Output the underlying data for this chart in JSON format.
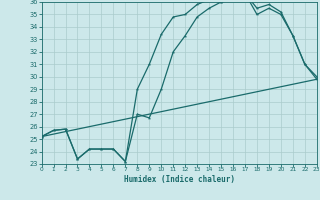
{
  "xlabel": "Humidex (Indice chaleur)",
  "ylabel": "",
  "background_color": "#cce8ea",
  "grid_color": "#aacccc",
  "line_color": "#1a6b6b",
  "xlim": [
    0,
    23
  ],
  "ylim": [
    23,
    36
  ],
  "xticks": [
    0,
    1,
    2,
    3,
    4,
    5,
    6,
    7,
    8,
    9,
    10,
    11,
    12,
    13,
    14,
    15,
    16,
    17,
    18,
    19,
    20,
    21,
    22,
    23
  ],
  "yticks": [
    23,
    24,
    25,
    26,
    27,
    28,
    29,
    30,
    31,
    32,
    33,
    34,
    35,
    36
  ],
  "line1_x": [
    0,
    1,
    2,
    3,
    4,
    5,
    6,
    7,
    8,
    9,
    10,
    11,
    12,
    13,
    14,
    15,
    16,
    17,
    18,
    19,
    20,
    21,
    22,
    23
  ],
  "line1_y": [
    25.2,
    25.7,
    25.8,
    23.4,
    24.2,
    24.2,
    24.2,
    23.2,
    29.0,
    31.0,
    33.4,
    34.8,
    35.0,
    35.8,
    36.2,
    36.0,
    36.2,
    36.7,
    35.5,
    35.8,
    35.2,
    33.3,
    31.0,
    30.0
  ],
  "line2_x": [
    0,
    1,
    2,
    3,
    4,
    5,
    6,
    7,
    8,
    9,
    10,
    11,
    12,
    13,
    14,
    15,
    16,
    17,
    18,
    19,
    20,
    21,
    22,
    23
  ],
  "line2_y": [
    25.2,
    25.7,
    25.8,
    23.4,
    24.2,
    24.2,
    24.2,
    23.2,
    27.0,
    26.7,
    29.0,
    32.0,
    33.3,
    34.8,
    35.5,
    36.0,
    36.2,
    36.7,
    35.0,
    35.5,
    35.0,
    33.3,
    31.0,
    29.8
  ],
  "line3_x": [
    0,
    23
  ],
  "line3_y": [
    25.2,
    29.8
  ]
}
